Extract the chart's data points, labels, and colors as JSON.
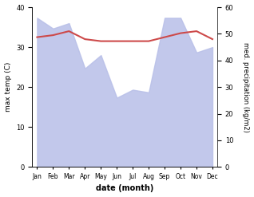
{
  "months": [
    "Jan",
    "Feb",
    "Mar",
    "Apr",
    "May",
    "Jun",
    "Jul",
    "Aug",
    "Sep",
    "Oct",
    "Nov",
    "Dec"
  ],
  "month_indices": [
    0,
    1,
    2,
    3,
    4,
    5,
    6,
    7,
    8,
    9,
    10,
    11
  ],
  "max_temp": [
    32.5,
    33.0,
    34.0,
    32.0,
    31.5,
    31.5,
    31.5,
    31.5,
    32.5,
    33.5,
    34.0,
    32.0
  ],
  "precipitation": [
    56.0,
    52.0,
    54.0,
    37.0,
    42.0,
    26.0,
    29.0,
    28.0,
    56.0,
    56.0,
    43.0,
    45.0
  ],
  "temp_ylim": [
    0,
    40
  ],
  "precip_ylim": [
    0,
    60
  ],
  "temp_color": "#cd4a4a",
  "precip_fill_color": "#b8bfe8",
  "title": "",
  "xlabel": "date (month)",
  "ylabel_left": "max temp (C)",
  "ylabel_right": "med. precipitation (kg/m2)",
  "background_color": "#ffffff",
  "fig_width": 3.18,
  "fig_height": 2.47,
  "dpi": 100
}
